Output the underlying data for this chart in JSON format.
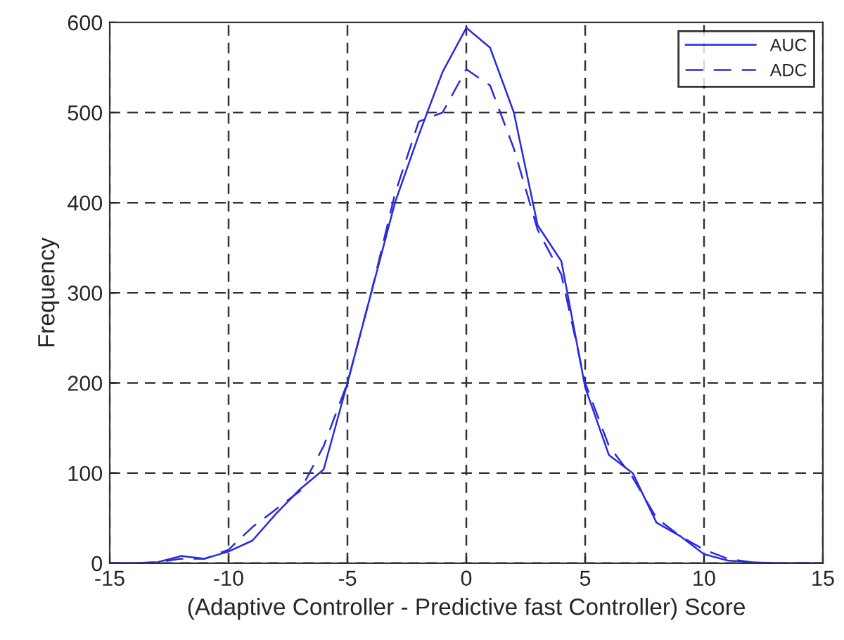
{
  "chart_data": {
    "type": "line",
    "xlabel": "(Adaptive Controller - Predictive fast Controller) Score",
    "ylabel": "Frequency",
    "x": [
      -15,
      -14,
      -13,
      -12,
      -11,
      -10,
      -9,
      -8,
      -7,
      -6,
      -5,
      -4,
      -3,
      -2,
      -1,
      0,
      1,
      2,
      3,
      4,
      5,
      6,
      7,
      8,
      9,
      10,
      11,
      12,
      13,
      14,
      15
    ],
    "series": [
      {
        "name": "AUC",
        "color": "#2b2bdc",
        "line_style": "solid",
        "values": [
          0,
          0,
          1,
          8,
          5,
          13,
          25,
          55,
          82,
          104,
          200,
          300,
          400,
          475,
          545,
          594,
          572,
          500,
          375,
          335,
          195,
          120,
          100,
          45,
          30,
          10,
          3,
          1,
          0,
          0,
          0
        ]
      },
      {
        "name": "ADC",
        "color": "#2b2bdc",
        "line_style": "dashed",
        "values": [
          0,
          0,
          1,
          5,
          5,
          15,
          40,
          60,
          80,
          130,
          200,
          300,
          410,
          490,
          500,
          548,
          530,
          460,
          370,
          320,
          200,
          130,
          95,
          50,
          30,
          15,
          5,
          1,
          0,
          0,
          0
        ]
      }
    ],
    "xlim": [
      -15,
      15
    ],
    "ylim": [
      0,
      600
    ],
    "xticks": [
      -15,
      -10,
      -5,
      0,
      5,
      10,
      15
    ],
    "yticks": [
      0,
      100,
      200,
      300,
      400,
      500,
      600
    ],
    "grid": true,
    "legend": "top right",
    "marker": "none"
  }
}
